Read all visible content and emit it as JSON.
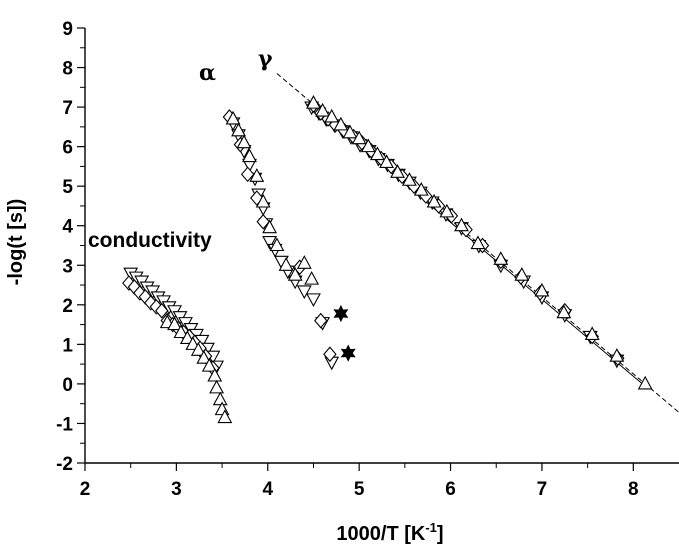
{
  "chart_data": {
    "type": "scatter",
    "title": "",
    "xlabel": "1000/T [K",
    "xlabel_superscript": "-1",
    "xlabel_suffix": "]",
    "ylabel": "-log(t [s])",
    "xlim": [
      2,
      8.5
    ],
    "ylim": [
      -2,
      9
    ],
    "x_ticks": [
      "2",
      "3",
      "4",
      "5",
      "6",
      "7",
      "8"
    ],
    "y_ticks": [
      "-2",
      "-1",
      "0",
      "1",
      "2",
      "3",
      "4",
      "5",
      "6",
      "7",
      "8",
      "9"
    ],
    "grid": false,
    "annotations": {
      "conductivity": "conductivity",
      "alpha": "α",
      "gamma": "γ"
    },
    "fit_lines": [
      {
        "style": "dashed",
        "x": [
          4.1,
          8.5
        ],
        "y": [
          7.85,
          -0.72
        ]
      },
      {
        "style": "solid",
        "x": [
          4.45,
          8.1
        ],
        "y": [
          7.1,
          0.0
        ]
      }
    ],
    "series": [
      {
        "marker": "triangle-down",
        "points": [
          [
            2.5,
            2.8
          ],
          [
            2.56,
            2.7
          ],
          [
            2.62,
            2.6
          ],
          [
            2.68,
            2.45
          ],
          [
            2.74,
            2.35
          ],
          [
            2.8,
            2.2
          ],
          [
            2.86,
            2.1
          ],
          [
            2.92,
            1.95
          ],
          [
            2.98,
            1.85
          ],
          [
            3.04,
            1.7
          ],
          [
            3.1,
            1.55
          ],
          [
            3.16,
            1.4
          ],
          [
            3.22,
            1.25
          ],
          [
            3.28,
            1.1
          ],
          [
            3.34,
            0.9
          ],
          [
            3.4,
            0.7
          ],
          [
            3.44,
            0.45
          ],
          [
            3.62,
            6.6
          ],
          [
            3.68,
            6.3
          ],
          [
            3.74,
            5.9
          ],
          [
            3.8,
            5.55
          ],
          [
            3.86,
            5.2
          ],
          [
            3.9,
            4.8
          ],
          [
            3.95,
            4.45
          ],
          [
            3.98,
            4.05
          ],
          [
            4.02,
            3.6
          ],
          [
            4.08,
            3.4
          ],
          [
            4.15,
            3.1
          ],
          [
            4.22,
            2.85
          ],
          [
            4.3,
            2.6
          ],
          [
            4.4,
            2.35
          ],
          [
            4.5,
            2.15
          ],
          [
            4.6,
            1.55
          ],
          [
            4.7,
            0.55
          ],
          [
            4.48,
            7.0
          ],
          [
            4.56,
            6.85
          ],
          [
            4.64,
            6.7
          ],
          [
            4.73,
            6.55
          ],
          [
            4.82,
            6.4
          ],
          [
            4.91,
            6.25
          ],
          [
            5.01,
            6.05
          ],
          [
            5.11,
            5.9
          ],
          [
            5.21,
            5.7
          ],
          [
            5.31,
            5.55
          ],
          [
            5.43,
            5.3
          ],
          [
            5.55,
            5.1
          ],
          [
            5.67,
            4.85
          ],
          [
            5.8,
            4.6
          ],
          [
            5.95,
            4.3
          ],
          [
            6.12,
            3.95
          ],
          [
            6.31,
            3.5
          ],
          [
            6.55,
            3.0
          ],
          [
            6.8,
            2.6
          ],
          [
            7.0,
            2.2
          ],
          [
            7.25,
            1.75
          ],
          [
            7.53,
            1.2
          ],
          [
            7.82,
            0.6
          ]
        ]
      },
      {
        "marker": "diamond",
        "points": [
          [
            2.48,
            2.55
          ],
          [
            2.54,
            2.45
          ],
          [
            2.6,
            2.3
          ],
          [
            2.66,
            2.2
          ],
          [
            2.72,
            2.05
          ],
          [
            2.78,
            1.95
          ],
          [
            2.84,
            1.85
          ],
          [
            2.9,
            1.6
          ],
          [
            2.96,
            1.5
          ],
          [
            3.02,
            1.4
          ],
          [
            3.08,
            1.3
          ],
          [
            3.14,
            1.2
          ],
          [
            3.2,
            1.05
          ],
          [
            3.26,
            0.9
          ],
          [
            3.32,
            0.7
          ],
          [
            3.4,
            0.4
          ],
          [
            3.58,
            6.75
          ],
          [
            3.7,
            6.05
          ],
          [
            3.78,
            5.3
          ],
          [
            3.88,
            4.7
          ],
          [
            3.95,
            4.1
          ],
          [
            4.35,
            2.95
          ],
          [
            4.58,
            1.6
          ],
          [
            4.68,
            0.75
          ],
          [
            4.5,
            7.05
          ],
          [
            4.58,
            6.85
          ],
          [
            4.66,
            6.7
          ],
          [
            4.74,
            6.55
          ],
          [
            4.84,
            6.4
          ],
          [
            4.94,
            6.25
          ],
          [
            5.03,
            6.1
          ],
          [
            5.13,
            5.9
          ],
          [
            5.24,
            5.7
          ],
          [
            5.35,
            5.5
          ],
          [
            5.47,
            5.25
          ],
          [
            5.6,
            5.0
          ],
          [
            5.73,
            4.75
          ],
          [
            5.87,
            4.5
          ],
          [
            6.01,
            4.25
          ],
          [
            6.17,
            3.9
          ],
          [
            6.35,
            3.5
          ],
          [
            6.55,
            3.1
          ],
          [
            6.77,
            2.7
          ],
          [
            6.98,
            2.3
          ],
          [
            7.25,
            1.85
          ],
          [
            7.55,
            1.2
          ],
          [
            7.83,
            0.65
          ]
        ]
      },
      {
        "marker": "triangle-up",
        "points": [
          [
            2.9,
            1.55
          ],
          [
            2.98,
            1.5
          ],
          [
            3.05,
            1.3
          ],
          [
            3.12,
            1.15
          ],
          [
            3.18,
            1.0
          ],
          [
            3.24,
            0.85
          ],
          [
            3.3,
            0.65
          ],
          [
            3.36,
            0.45
          ],
          [
            3.42,
            0.2
          ],
          [
            3.44,
            -0.1
          ],
          [
            3.48,
            -0.4
          ],
          [
            3.5,
            -0.65
          ],
          [
            3.53,
            -0.85
          ],
          [
            3.62,
            6.7
          ],
          [
            3.68,
            6.4
          ],
          [
            3.74,
            6.1
          ],
          [
            3.8,
            5.75
          ],
          [
            3.88,
            5.25
          ],
          [
            3.95,
            4.6
          ],
          [
            4.02,
            3.95
          ],
          [
            4.1,
            3.5
          ],
          [
            4.2,
            3.0
          ],
          [
            4.3,
            2.75
          ],
          [
            4.4,
            3.05
          ],
          [
            4.48,
            2.65
          ],
          [
            4.5,
            7.1
          ],
          [
            4.6,
            6.9
          ],
          [
            4.7,
            6.75
          ],
          [
            4.8,
            6.55
          ],
          [
            4.9,
            6.35
          ],
          [
            5.0,
            6.2
          ],
          [
            5.1,
            6.0
          ],
          [
            5.2,
            5.8
          ],
          [
            5.3,
            5.6
          ],
          [
            5.42,
            5.35
          ],
          [
            5.55,
            5.15
          ],
          [
            5.68,
            4.9
          ],
          [
            5.82,
            4.6
          ],
          [
            5.96,
            4.35
          ],
          [
            6.12,
            4.0
          ],
          [
            6.3,
            3.55
          ],
          [
            6.55,
            3.15
          ],
          [
            6.78,
            2.75
          ],
          [
            7.0,
            2.35
          ],
          [
            7.24,
            1.8
          ],
          [
            7.55,
            1.25
          ],
          [
            7.82,
            0.7
          ],
          [
            8.13,
            0.0
          ]
        ]
      },
      {
        "marker": "star-filled",
        "points": [
          [
            4.8,
            1.78
          ],
          [
            4.88,
            0.78
          ]
        ]
      }
    ]
  }
}
